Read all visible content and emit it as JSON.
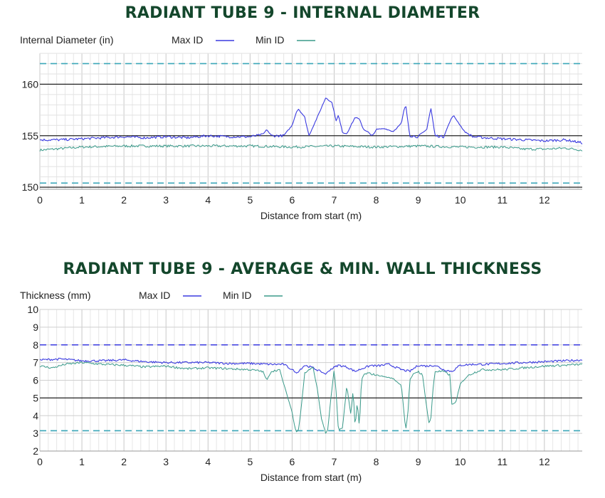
{
  "chart_data": [
    {
      "type": "line",
      "title": "RADIANT TUBE 9 - INTERNAL DIAMETER",
      "xlabel": "Distance from start (m)",
      "ylabel": "Internal Diameter (in)",
      "xlim": [
        0,
        12.9
      ],
      "ylim": [
        149.8,
        163.0
      ],
      "xticks": [
        "0",
        "1",
        "2",
        "3",
        "4",
        "5",
        "6",
        "7",
        "8",
        "9",
        "10",
        "11",
        "12"
      ],
      "yticks": [
        "150",
        "155",
        "160"
      ],
      "legend": [
        "Max ID",
        "Min ID"
      ],
      "colors": {
        "max": "#3a3ae0",
        "min": "#3a9a8a",
        "ref": "#3aa6b8"
      },
      "reference_lines": [
        162,
        150.4
      ],
      "base_max": 154.6,
      "base_min": 153.9,
      "series": [
        {
          "name": "Max ID",
          "x": [
            0,
            0.5,
            1,
            1.5,
            2,
            2.5,
            3,
            3.5,
            4,
            4.5,
            5,
            5.3,
            5.4,
            5.5,
            5.8,
            6,
            6.1,
            6.15,
            6.3,
            6.4,
            6.6,
            6.8,
            6.95,
            7.05,
            7.1,
            7.2,
            7.3,
            7.5,
            7.6,
            7.7,
            7.8,
            7.9,
            8.0,
            8.2,
            8.4,
            8.6,
            8.65,
            8.7,
            8.8,
            9.0,
            9.2,
            9.3,
            9.4,
            9.6,
            9.8,
            9.85,
            10.0,
            10.1,
            10.3,
            10.6,
            11,
            11.5,
            12,
            12.5,
            12.9
          ],
          "values": [
            154.6,
            154.6,
            154.7,
            154.8,
            154.9,
            154.8,
            154.9,
            154.8,
            155.0,
            154.9,
            154.9,
            155.1,
            155.6,
            155.0,
            155.0,
            156.0,
            157.3,
            157.6,
            156.8,
            155.0,
            156.8,
            158.7,
            158.2,
            156.4,
            157.0,
            155.3,
            155.2,
            156.8,
            156.6,
            155.6,
            155.4,
            154.9,
            155.6,
            155.7,
            155.4,
            156.2,
            157.3,
            158.0,
            155.0,
            154.9,
            155.6,
            157.7,
            155.0,
            154.9,
            156.8,
            156.9,
            156.0,
            155.4,
            154.9,
            154.8,
            154.7,
            154.6,
            154.5,
            154.6,
            154.3
          ]
        },
        {
          "name": "Min ID",
          "x": [
            0,
            1,
            2,
            3,
            4,
            5,
            6,
            7,
            8,
            9,
            10,
            11,
            11.5,
            12,
            12.5,
            12.9
          ],
          "values": [
            153.6,
            153.9,
            154.0,
            154.0,
            154.0,
            154.0,
            153.9,
            154.0,
            153.9,
            154.0,
            153.9,
            153.9,
            153.7,
            153.7,
            153.8,
            153.6
          ]
        }
      ]
    },
    {
      "type": "line",
      "title": "RADIANT TUBE 9 - AVERAGE & MIN. WALL THICKNESS",
      "xlabel": "Distance from start (m)",
      "ylabel": "Thickness (mm)",
      "xlim": [
        0,
        12.9
      ],
      "ylim": [
        2,
        10
      ],
      "xticks": [
        "0",
        "1",
        "2",
        "3",
        "4",
        "5",
        "6",
        "7",
        "8",
        "9",
        "10",
        "11",
        "12"
      ],
      "yticks": [
        "2",
        "3",
        "4",
        "5",
        "6",
        "7",
        "8",
        "9",
        "10"
      ],
      "legend": [
        "Max ID",
        "Min ID"
      ],
      "colors": {
        "max": "#3a3ae0",
        "min": "#3a9a8a",
        "ref_top": "#3a3ae0",
        "ref_bottom": "#3aa6b8"
      },
      "reference_lines": [
        8.0,
        3.15
      ],
      "base_max": 7.0,
      "base_min": 6.8,
      "series": [
        {
          "name": "Max ID",
          "x": [
            0,
            0.5,
            1,
            1.5,
            2,
            2.5,
            3,
            3.5,
            4,
            4.5,
            5,
            5.5,
            5.8,
            6.0,
            6.1,
            6.3,
            6.5,
            6.8,
            6.9,
            7.1,
            7.3,
            7.5,
            7.7,
            7.9,
            8.0,
            8.3,
            8.6,
            8.8,
            9.0,
            9.2,
            9.4,
            9.6,
            9.8,
            10,
            10.3,
            10.6,
            11,
            11.5,
            12,
            12.5,
            12.9
          ],
          "values": [
            7.15,
            7.2,
            7.1,
            7.1,
            7.15,
            7.05,
            7.0,
            7.0,
            7.0,
            6.95,
            6.95,
            6.9,
            6.9,
            6.6,
            6.4,
            6.85,
            6.7,
            6.35,
            6.6,
            6.85,
            6.75,
            6.5,
            6.7,
            6.85,
            6.8,
            6.9,
            6.6,
            6.5,
            6.85,
            6.8,
            6.85,
            6.6,
            6.5,
            6.85,
            6.9,
            6.9,
            6.95,
            7.0,
            7.05,
            7.1,
            7.15
          ]
        },
        {
          "name": "Min ID",
          "x": [
            0,
            0.3,
            0.6,
            1.0,
            1.5,
            2.0,
            2.5,
            3.0,
            3.5,
            4.0,
            4.5,
            5.0,
            5.3,
            5.4,
            5.5,
            5.7,
            5.8,
            5.9,
            6.0,
            6.05,
            6.1,
            6.15,
            6.2,
            6.3,
            6.4,
            6.5,
            6.6,
            6.7,
            6.8,
            6.85,
            6.9,
            7.0,
            7.05,
            7.1,
            7.2,
            7.3,
            7.4,
            7.45,
            7.5,
            7.55,
            7.6,
            7.65,
            7.7,
            7.8,
            8.0,
            8.2,
            8.4,
            8.6,
            8.7,
            8.75,
            8.8,
            8.9,
            9.0,
            9.1,
            9.2,
            9.25,
            9.3,
            9.35,
            9.4,
            9.6,
            9.75,
            9.8,
            9.9,
            10.0,
            10.2,
            10.5,
            11.0,
            11.5,
            12.0,
            12.5,
            12.9
          ],
          "values": [
            6.8,
            6.7,
            6.9,
            7.0,
            6.9,
            6.85,
            6.75,
            6.8,
            6.65,
            6.7,
            6.65,
            6.6,
            6.5,
            6.0,
            6.5,
            6.6,
            5.8,
            5.0,
            4.2,
            3.5,
            3.1,
            3.2,
            4.1,
            6.4,
            6.6,
            6.7,
            5.5,
            3.8,
            3.0,
            3.2,
            4.5,
            6.6,
            5.2,
            3.2,
            3.3,
            5.7,
            4.0,
            5.5,
            3.3,
            4.8,
            3.3,
            6.0,
            6.3,
            6.4,
            6.3,
            6.2,
            6.1,
            5.7,
            3.2,
            4.0,
            6.0,
            6.4,
            6.5,
            6.3,
            4.5,
            3.6,
            3.8,
            5.5,
            6.5,
            6.5,
            6.3,
            4.6,
            4.8,
            5.8,
            6.3,
            6.6,
            6.6,
            6.7,
            6.8,
            6.85,
            6.9
          ]
        }
      ]
    }
  ]
}
